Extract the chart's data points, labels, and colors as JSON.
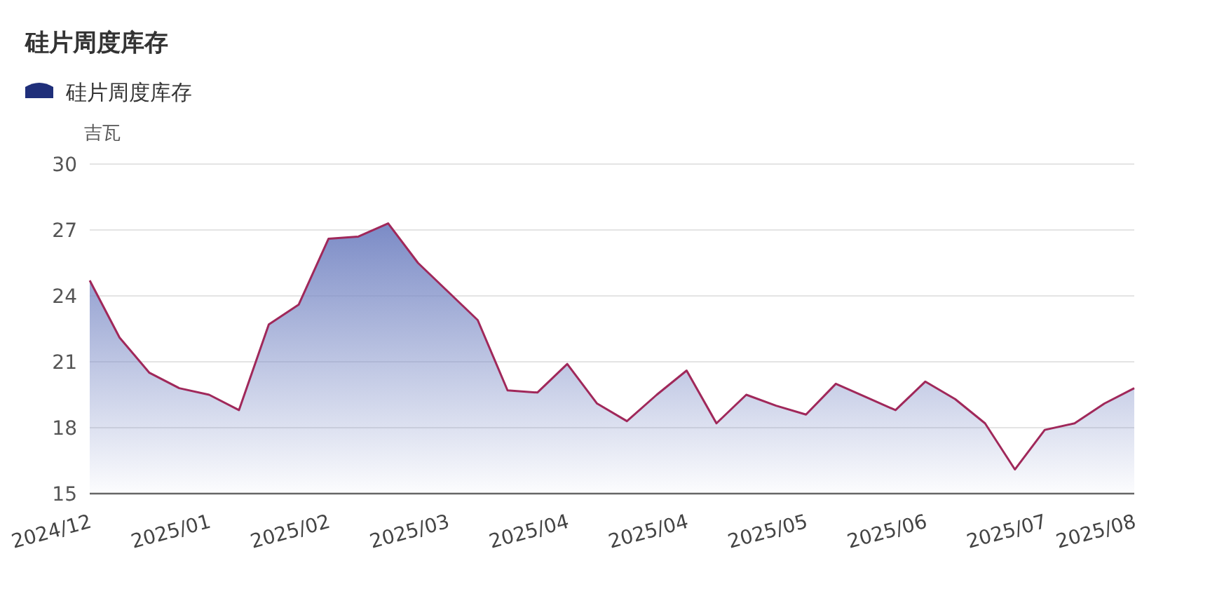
{
  "chart_data": {
    "type": "area",
    "title": "硅片周度库存",
    "ylabel": "吉瓦",
    "categories": [
      "2024/12",
      null,
      null,
      null,
      "2025/01",
      null,
      null,
      null,
      "2025/02",
      null,
      null,
      null,
      "2025/03",
      null,
      null,
      null,
      "2025/04",
      null,
      null,
      null,
      "2025/04",
      null,
      null,
      null,
      "2025/05",
      null,
      null,
      null,
      "2025/06",
      null,
      null,
      null,
      "2025/07",
      null,
      null,
      "2025/08"
    ],
    "series": [
      {
        "name": "硅片周度库存",
        "color": "#7b8bc6",
        "values": [
          24.7,
          22.1,
          20.5,
          19.8,
          19.5,
          18.8,
          22.7,
          23.6,
          26.6,
          26.7,
          27.3,
          25.5,
          24.2,
          22.9,
          19.7,
          19.6,
          20.9,
          19.1,
          18.3,
          19.5,
          20.6,
          18.2,
          19.5,
          19.0,
          18.6,
          20.0,
          19.4,
          18.8,
          20.1,
          19.3,
          18.2,
          16.1,
          17.9,
          18.2,
          19.1,
          19.8
        ]
      }
    ],
    "ylim": [
      15,
      30
    ],
    "yticks": [
      15,
      18,
      21,
      24,
      27,
      30
    ],
    "grid": "y",
    "legend": "top left",
    "marker": "none",
    "line_style": "solid"
  }
}
